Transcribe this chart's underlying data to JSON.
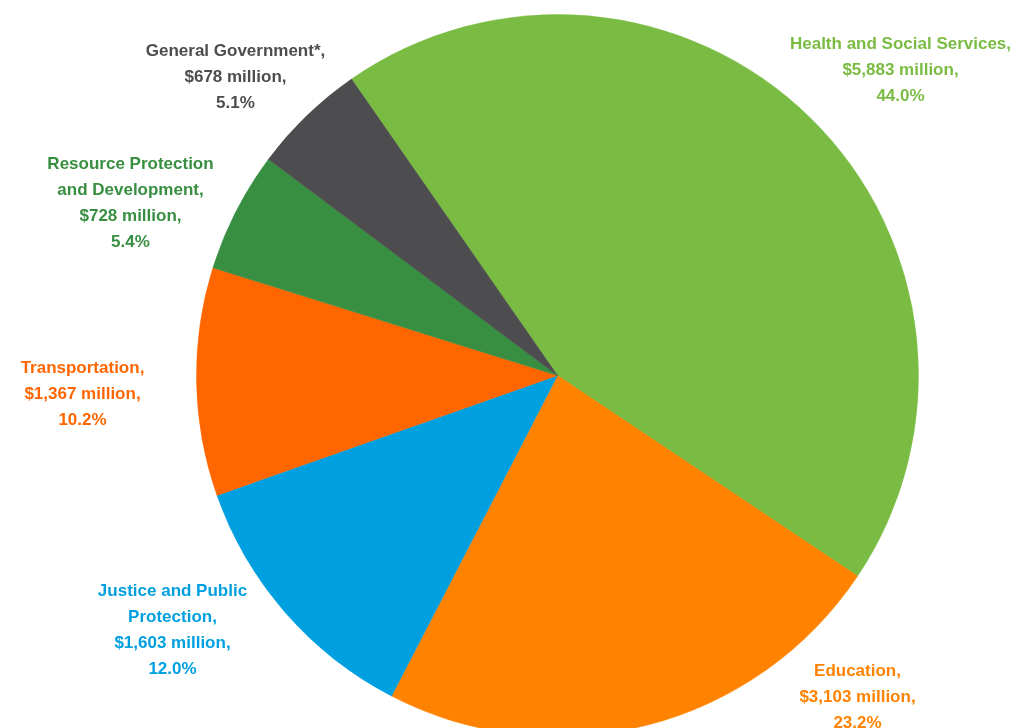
{
  "chart_data": {
    "type": "pie",
    "categories": [
      "Health and Social Services",
      "Education",
      "Justice and Public\nProtection",
      "Transportation",
      "Resource Protection\nand Development",
      "General Government*"
    ],
    "values": [
      44.0,
      23.2,
      12.0,
      10.2,
      5.4,
      5.1
    ],
    "value_labels": [
      ",\n$5,883 million,\n44.0%",
      ",\n$3,103 million,\n23.2%",
      ",\n$1,603 million,\n12.0%",
      ",\n$1,367 million,\n10.2%",
      ",\n$728 million,\n5.4%",
      ",\n$678 million,\n5.1%"
    ],
    "colors": [
      "#7abc43",
      "#ff8300",
      "#00a0e0",
      "#ff6600",
      "#388e41",
      "#4d4d4f"
    ]
  }
}
